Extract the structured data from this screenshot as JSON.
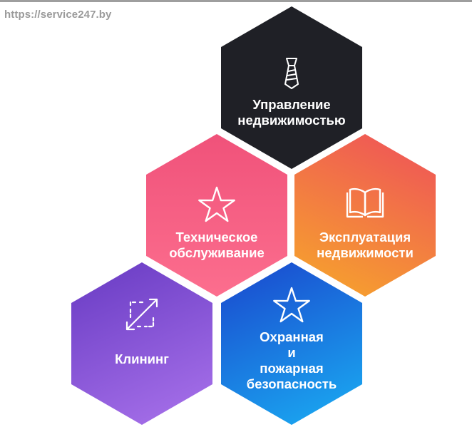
{
  "site_url": "https://service247.by",
  "colors": {
    "management": "#1f2026",
    "maintenance_start": "#f0527a",
    "maintenance_end": "#fc6e8e",
    "operation_start": "#ef5756",
    "operation_end": "#f6a02e",
    "cleaning_start": "#6d3fc6",
    "cleaning_end": "#a46ee8",
    "security_start": "#1a4fd0",
    "security_end": "#1aa5f0"
  },
  "hexes": {
    "management": {
      "line1": "Управление",
      "line2": "недвижимостью",
      "icon": "tie-icon"
    },
    "maintenance": {
      "line1": "Техническое",
      "line2": "обслуживание",
      "icon": "star-outline-icon"
    },
    "operation": {
      "line1": "Эксплуатация",
      "line2": "недвижимости",
      "icon": "open-book-icon"
    },
    "cleaning": {
      "line1": "Клининг",
      "icon": "expand-arrows-icon"
    },
    "security": {
      "line1": "Охранная",
      "line2": "и",
      "line3": "пожарная",
      "line4": "безопасность",
      "icon": "star-outline-icon"
    }
  }
}
